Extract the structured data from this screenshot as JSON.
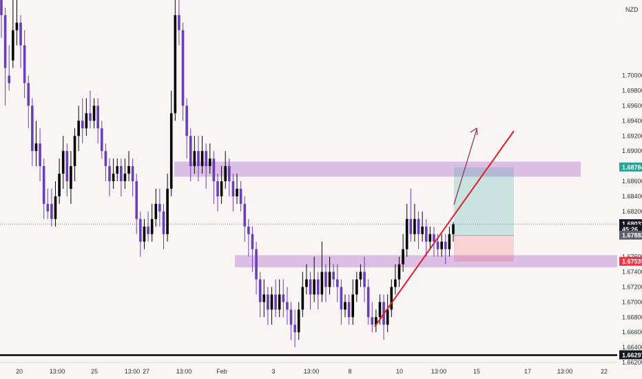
{
  "chart_data": {
    "type": "candlestick",
    "currency": "NZD",
    "ylim": [
      1.662,
      1.71
    ],
    "y_ticks": [
      "1.70000",
      "1.69800",
      "1.69600",
      "1.69400",
      "1.69200",
      "1.69000",
      "1.68600",
      "1.68400",
      "1.68200",
      "1.67600",
      "1.67400",
      "1.67200",
      "1.67000",
      "1.66800",
      "1.66600",
      "1.66400",
      "1.66200"
    ],
    "x_ticks": [
      "20",
      "13:00",
      "25",
      "13:00",
      "27",
      "13:00",
      "Feb",
      "3",
      "13:00",
      "8",
      "10",
      "13:00",
      "15",
      "17",
      "13:00",
      "22"
    ],
    "price_tags": [
      {
        "label": "1.68784",
        "value": 1.68784,
        "color": "#26a69a"
      },
      {
        "label": "1.68033",
        "value": 1.68033,
        "color": "#131722"
      },
      {
        "label": "45:26",
        "value": 1.6796,
        "color": "#131722"
      },
      {
        "label": "1.67882",
        "value": 1.67882,
        "color": "#5d606b"
      },
      {
        "label": "1.67535",
        "value": 1.67535,
        "color": "#f23645"
      },
      {
        "label": "1.66297",
        "value": 1.66297,
        "color": "#131722"
      }
    ],
    "zones": [
      {
        "name": "resistance-zone",
        "low": 1.6866,
        "high": 1.6886,
        "color": "#d8b4e2"
      },
      {
        "name": "support-zone",
        "low": 1.6746,
        "high": 1.6762,
        "color": "#d8b4e2"
      }
    ],
    "support_line": 1.66297,
    "current_price": 1.68033,
    "position": {
      "entry": 1.67882,
      "target": 1.68784,
      "stop": 1.67535
    },
    "candles": [
      {
        "o": 1.71,
        "c": 1.708,
        "h": 1.711,
        "l": 1.705,
        "up": false
      },
      {
        "o": 1.708,
        "c": 1.701,
        "h": 1.709,
        "l": 1.696,
        "up": false
      },
      {
        "o": 1.7,
        "c": 1.699,
        "h": 1.704,
        "l": 1.698,
        "up": false
      },
      {
        "o": 1.702,
        "c": 1.706,
        "h": 1.71,
        "l": 1.701,
        "up": true
      },
      {
        "o": 1.706,
        "c": 1.707,
        "h": 1.71,
        "l": 1.704,
        "up": true
      },
      {
        "o": 1.707,
        "c": 1.704,
        "h": 1.708,
        "l": 1.701,
        "up": false
      },
      {
        "o": 1.704,
        "c": 1.699,
        "h": 1.706,
        "l": 1.697,
        "up": false
      },
      {
        "o": 1.699,
        "c": 1.696,
        "h": 1.7,
        "l": 1.693,
        "up": false
      },
      {
        "o": 1.696,
        "c": 1.69,
        "h": 1.697,
        "l": 1.688,
        "up": false
      },
      {
        "o": 1.69,
        "c": 1.691,
        "h": 1.694,
        "l": 1.688,
        "up": true
      },
      {
        "o": 1.691,
        "c": 1.688,
        "h": 1.693,
        "l": 1.686,
        "up": false
      },
      {
        "o": 1.688,
        "c": 1.683,
        "h": 1.689,
        "l": 1.681,
        "up": false
      },
      {
        "o": 1.683,
        "c": 1.682,
        "h": 1.685,
        "l": 1.681,
        "up": false
      },
      {
        "o": 1.683,
        "c": 1.681,
        "h": 1.685,
        "l": 1.68,
        "up": false
      },
      {
        "o": 1.681,
        "c": 1.684,
        "h": 1.686,
        "l": 1.68,
        "up": true
      },
      {
        "o": 1.684,
        "c": 1.687,
        "h": 1.689,
        "l": 1.683,
        "up": true
      },
      {
        "o": 1.687,
        "c": 1.69,
        "h": 1.692,
        "l": 1.685,
        "up": true
      },
      {
        "o": 1.69,
        "c": 1.686,
        "h": 1.691,
        "l": 1.684,
        "up": false
      },
      {
        "o": 1.685,
        "c": 1.688,
        "h": 1.69,
        "l": 1.683,
        "up": true
      },
      {
        "o": 1.688,
        "c": 1.692,
        "h": 1.693,
        "l": 1.686,
        "up": true
      },
      {
        "o": 1.692,
        "c": 1.694,
        "h": 1.696,
        "l": 1.69,
        "up": true
      },
      {
        "o": 1.694,
        "c": 1.693,
        "h": 1.697,
        "l": 1.691,
        "up": false
      },
      {
        "o": 1.693,
        "c": 1.695,
        "h": 1.697,
        "l": 1.692,
        "up": true
      },
      {
        "o": 1.695,
        "c": 1.694,
        "h": 1.698,
        "l": 1.693,
        "up": false
      },
      {
        "o": 1.694,
        "c": 1.696,
        "h": 1.697,
        "l": 1.693,
        "up": true
      },
      {
        "o": 1.696,
        "c": 1.693,
        "h": 1.697,
        "l": 1.691,
        "up": false
      },
      {
        "o": 1.693,
        "c": 1.69,
        "h": 1.694,
        "l": 1.689,
        "up": false
      },
      {
        "o": 1.69,
        "c": 1.688,
        "h": 1.691,
        "l": 1.686,
        "up": false
      },
      {
        "o": 1.688,
        "c": 1.686,
        "h": 1.689,
        "l": 1.684,
        "up": false
      },
      {
        "o": 1.686,
        "c": 1.687,
        "h": 1.689,
        "l": 1.685,
        "up": true
      },
      {
        "o": 1.687,
        "c": 1.688,
        "h": 1.689,
        "l": 1.686,
        "up": true
      },
      {
        "o": 1.688,
        "c": 1.686,
        "h": 1.689,
        "l": 1.684,
        "up": false
      },
      {
        "o": 1.686,
        "c": 1.687,
        "h": 1.689,
        "l": 1.685,
        "up": true
      },
      {
        "o": 1.687,
        "c": 1.688,
        "h": 1.69,
        "l": 1.686,
        "up": true
      },
      {
        "o": 1.688,
        "c": 1.686,
        "h": 1.689,
        "l": 1.684,
        "up": false
      },
      {
        "o": 1.686,
        "c": 1.681,
        "h": 1.687,
        "l": 1.679,
        "up": false
      },
      {
        "o": 1.681,
        "c": 1.678,
        "h": 1.682,
        "l": 1.676,
        "up": false
      },
      {
        "o": 1.678,
        "c": 1.68,
        "h": 1.681,
        "l": 1.677,
        "up": true
      },
      {
        "o": 1.68,
        "c": 1.679,
        "h": 1.682,
        "l": 1.678,
        "up": false
      },
      {
        "o": 1.679,
        "c": 1.681,
        "h": 1.683,
        "l": 1.678,
        "up": true
      },
      {
        "o": 1.681,
        "c": 1.683,
        "h": 1.685,
        "l": 1.68,
        "up": true
      },
      {
        "o": 1.683,
        "c": 1.682,
        "h": 1.685,
        "l": 1.68,
        "up": false
      },
      {
        "o": 1.682,
        "c": 1.679,
        "h": 1.683,
        "l": 1.677,
        "up": false
      },
      {
        "o": 1.679,
        "c": 1.685,
        "h": 1.687,
        "l": 1.678,
        "up": true
      },
      {
        "o": 1.685,
        "c": 1.695,
        "h": 1.698,
        "l": 1.684,
        "up": true
      },
      {
        "o": 1.695,
        "c": 1.708,
        "h": 1.711,
        "l": 1.694,
        "up": true
      },
      {
        "o": 1.708,
        "c": 1.706,
        "h": 1.711,
        "l": 1.704,
        "up": false
      },
      {
        "o": 1.706,
        "c": 1.696,
        "h": 1.707,
        "l": 1.694,
        "up": false
      },
      {
        "o": 1.696,
        "c": 1.692,
        "h": 1.697,
        "l": 1.689,
        "up": false
      },
      {
        "o": 1.692,
        "c": 1.688,
        "h": 1.693,
        "l": 1.686,
        "up": false
      },
      {
        "o": 1.688,
        "c": 1.69,
        "h": 1.692,
        "l": 1.687,
        "up": true
      },
      {
        "o": 1.69,
        "c": 1.688,
        "h": 1.692,
        "l": 1.686,
        "up": false
      },
      {
        "o": 1.688,
        "c": 1.69,
        "h": 1.692,
        "l": 1.687,
        "up": true
      },
      {
        "o": 1.69,
        "c": 1.688,
        "h": 1.691,
        "l": 1.685,
        "up": false
      },
      {
        "o": 1.688,
        "c": 1.689,
        "h": 1.691,
        "l": 1.687,
        "up": true
      },
      {
        "o": 1.689,
        "c": 1.686,
        "h": 1.69,
        "l": 1.683,
        "up": false
      },
      {
        "o": 1.686,
        "c": 1.684,
        "h": 1.687,
        "l": 1.682,
        "up": false
      },
      {
        "o": 1.684,
        "c": 1.686,
        "h": 1.688,
        "l": 1.683,
        "up": true
      },
      {
        "o": 1.686,
        "c": 1.688,
        "h": 1.69,
        "l": 1.685,
        "up": true
      },
      {
        "o": 1.688,
        "c": 1.686,
        "h": 1.689,
        "l": 1.684,
        "up": false
      },
      {
        "o": 1.686,
        "c": 1.684,
        "h": 1.687,
        "l": 1.682,
        "up": false
      },
      {
        "o": 1.684,
        "c": 1.685,
        "h": 1.687,
        "l": 1.683,
        "up": true
      },
      {
        "o": 1.685,
        "c": 1.683,
        "h": 1.686,
        "l": 1.682,
        "up": false
      },
      {
        "o": 1.683,
        "c": 1.68,
        "h": 1.684,
        "l": 1.678,
        "up": false
      },
      {
        "o": 1.68,
        "c": 1.679,
        "h": 1.681,
        "l": 1.676,
        "up": false
      },
      {
        "o": 1.679,
        "c": 1.677,
        "h": 1.68,
        "l": 1.674,
        "up": false
      },
      {
        "o": 1.677,
        "c": 1.673,
        "h": 1.678,
        "l": 1.671,
        "up": false
      },
      {
        "o": 1.673,
        "c": 1.67,
        "h": 1.674,
        "l": 1.668,
        "up": false
      },
      {
        "o": 1.67,
        "c": 1.671,
        "h": 1.673,
        "l": 1.668,
        "up": true
      },
      {
        "o": 1.671,
        "c": 1.669,
        "h": 1.672,
        "l": 1.667,
        "up": false
      },
      {
        "o": 1.669,
        "c": 1.671,
        "h": 1.672,
        "l": 1.667,
        "up": true
      },
      {
        "o": 1.671,
        "c": 1.669,
        "h": 1.673,
        "l": 1.668,
        "up": false
      },
      {
        "o": 1.669,
        "c": 1.671,
        "h": 1.673,
        "l": 1.668,
        "up": true
      },
      {
        "o": 1.671,
        "c": 1.67,
        "h": 1.673,
        "l": 1.668,
        "up": false
      },
      {
        "o": 1.67,
        "c": 1.669,
        "h": 1.672,
        "l": 1.667,
        "up": false
      },
      {
        "o": 1.669,
        "c": 1.667,
        "h": 1.67,
        "l": 1.665,
        "up": false
      },
      {
        "o": 1.667,
        "c": 1.666,
        "h": 1.669,
        "l": 1.664,
        "up": false
      },
      {
        "o": 1.666,
        "c": 1.669,
        "h": 1.67,
        "l": 1.665,
        "up": true
      },
      {
        "o": 1.669,
        "c": 1.672,
        "h": 1.674,
        "l": 1.668,
        "up": true
      },
      {
        "o": 1.672,
        "c": 1.673,
        "h": 1.675,
        "l": 1.671,
        "up": true
      },
      {
        "o": 1.673,
        "c": 1.671,
        "h": 1.674,
        "l": 1.669,
        "up": false
      },
      {
        "o": 1.671,
        "c": 1.673,
        "h": 1.676,
        "l": 1.67,
        "up": true
      },
      {
        "o": 1.673,
        "c": 1.671,
        "h": 1.674,
        "l": 1.669,
        "up": false
      },
      {
        "o": 1.671,
        "c": 1.674,
        "h": 1.678,
        "l": 1.67,
        "up": true
      },
      {
        "o": 1.674,
        "c": 1.672,
        "h": 1.675,
        "l": 1.67,
        "up": false
      },
      {
        "o": 1.672,
        "c": 1.674,
        "h": 1.676,
        "l": 1.671,
        "up": true
      },
      {
        "o": 1.674,
        "c": 1.673,
        "h": 1.675,
        "l": 1.672,
        "up": false
      },
      {
        "o": 1.673,
        "c": 1.672,
        "h": 1.675,
        "l": 1.67,
        "up": false
      },
      {
        "o": 1.672,
        "c": 1.669,
        "h": 1.673,
        "l": 1.667,
        "up": false
      },
      {
        "o": 1.669,
        "c": 1.67,
        "h": 1.671,
        "l": 1.668,
        "up": true
      },
      {
        "o": 1.67,
        "c": 1.668,
        "h": 1.671,
        "l": 1.667,
        "up": false
      },
      {
        "o": 1.668,
        "c": 1.671,
        "h": 1.673,
        "l": 1.667,
        "up": true
      },
      {
        "o": 1.671,
        "c": 1.673,
        "h": 1.674,
        "l": 1.67,
        "up": true
      },
      {
        "o": 1.673,
        "c": 1.674,
        "h": 1.675,
        "l": 1.672,
        "up": true
      },
      {
        "o": 1.674,
        "c": 1.672,
        "h": 1.676,
        "l": 1.67,
        "up": false
      },
      {
        "o": 1.672,
        "c": 1.668,
        "h": 1.673,
        "l": 1.667,
        "up": false
      },
      {
        "o": 1.668,
        "c": 1.667,
        "h": 1.67,
        "l": 1.666,
        "up": false
      },
      {
        "o": 1.667,
        "c": 1.668,
        "h": 1.669,
        "l": 1.666,
        "up": true
      },
      {
        "o": 1.668,
        "c": 1.67,
        "h": 1.671,
        "l": 1.667,
        "up": true
      },
      {
        "o": 1.67,
        "c": 1.667,
        "h": 1.671,
        "l": 1.665,
        "up": false
      },
      {
        "o": 1.667,
        "c": 1.669,
        "h": 1.671,
        "l": 1.666,
        "up": true
      },
      {
        "o": 1.669,
        "c": 1.672,
        "h": 1.673,
        "l": 1.668,
        "up": true
      },
      {
        "o": 1.672,
        "c": 1.673,
        "h": 1.675,
        "l": 1.671,
        "up": true
      },
      {
        "o": 1.673,
        "c": 1.675,
        "h": 1.676,
        "l": 1.672,
        "up": true
      },
      {
        "o": 1.675,
        "c": 1.677,
        "h": 1.679,
        "l": 1.674,
        "up": true
      },
      {
        "o": 1.677,
        "c": 1.681,
        "h": 1.683,
        "l": 1.676,
        "up": true
      },
      {
        "o": 1.681,
        "c": 1.679,
        "h": 1.685,
        "l": 1.678,
        "up": false
      },
      {
        "o": 1.679,
        "c": 1.681,
        "h": 1.683,
        "l": 1.678,
        "up": true
      },
      {
        "o": 1.681,
        "c": 1.679,
        "h": 1.682,
        "l": 1.677,
        "up": false
      },
      {
        "o": 1.679,
        "c": 1.68,
        "h": 1.682,
        "l": 1.678,
        "up": true
      },
      {
        "o": 1.68,
        "c": 1.678,
        "h": 1.681,
        "l": 1.676,
        "up": false
      },
      {
        "o": 1.678,
        "c": 1.679,
        "h": 1.68,
        "l": 1.677,
        "up": true
      },
      {
        "o": 1.679,
        "c": 1.678,
        "h": 1.68,
        "l": 1.676,
        "up": false
      },
      {
        "o": 1.678,
        "c": 1.677,
        "h": 1.679,
        "l": 1.676,
        "up": false
      },
      {
        "o": 1.677,
        "c": 1.678,
        "h": 1.679,
        "l": 1.676,
        "up": true
      },
      {
        "o": 1.678,
        "c": 1.677,
        "h": 1.679,
        "l": 1.675,
        "up": false
      },
      {
        "o": 1.677,
        "c": 1.679,
        "h": 1.68,
        "l": 1.676,
        "up": true
      },
      {
        "o": 1.679,
        "c": 1.6803,
        "h": 1.6806,
        "l": 1.678,
        "up": true
      }
    ]
  }
}
